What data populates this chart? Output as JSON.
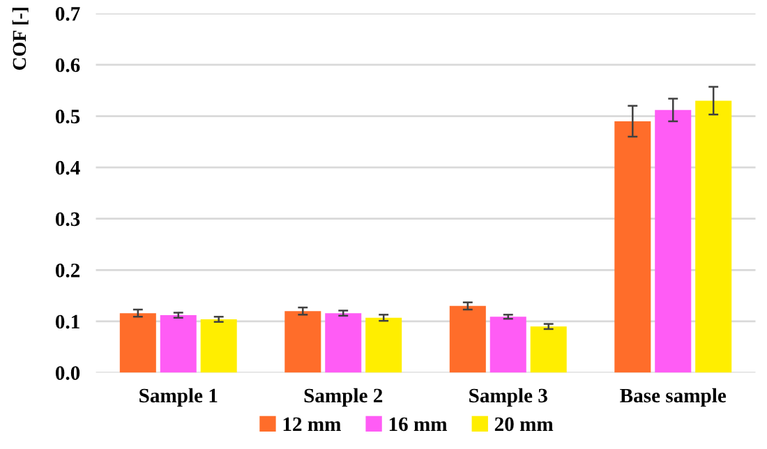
{
  "chart_data": {
    "type": "bar",
    "ylabel": "COF [-]",
    "categories": [
      "Sample 1",
      "Sample 2",
      "Sample 3",
      "Base sample"
    ],
    "series": [
      {
        "name": "12 mm",
        "color": "#ff6d2a",
        "values": [
          0.116,
          0.12,
          0.13,
          0.49
        ],
        "errors": [
          0.007,
          0.007,
          0.007,
          0.03
        ]
      },
      {
        "name": "16 mm",
        "color": "#ff5cf5",
        "values": [
          0.112,
          0.116,
          0.109,
          0.512
        ],
        "errors": [
          0.005,
          0.005,
          0.004,
          0.022
        ]
      },
      {
        "name": "20 mm",
        "color": "#ffee00",
        "values": [
          0.104,
          0.107,
          0.09,
          0.53
        ],
        "errors": [
          0.005,
          0.006,
          0.005,
          0.027
        ]
      }
    ],
    "ylim": [
      0,
      0.7
    ],
    "yticks": [
      {
        "value": 0,
        "label": "0.0"
      },
      0.1,
      0.2,
      0.3,
      0.4,
      0.5,
      0.6,
      0.7
    ],
    "grid": "y",
    "legend": "bottom"
  }
}
